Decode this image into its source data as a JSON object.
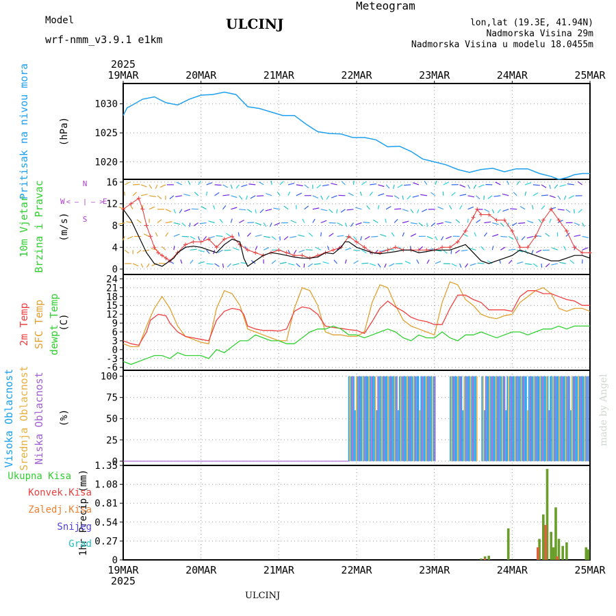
{
  "header": {
    "model_label": "Model",
    "model_name": "wrf-nmm_v3.9.1 e1km",
    "station": "ULCINJ",
    "meteogram": "Meteogram",
    "lonlat": "lon,lat (19.3E, 41.94N)",
    "elevation": "Nadmorska Visina 29m",
    "model_elevation": "Nadmorska Visina u modelu 18.0455m",
    "footer_station": "ULCINJ",
    "watermark": "made by Angel"
  },
  "colors": {
    "pressure": "#1ea0f0",
    "temp2m": "#f04040",
    "sfc": "#e0a030",
    "dew": "#30d030",
    "wind_gust": "#e84040",
    "wind_speed": "#000000",
    "hi_cloud": "#18a0f0",
    "mid_cloud": "#e8b040",
    "low_cloud": "#a060d0",
    "total_precip": "#6a9e2a",
    "conv_precip": "#e06040",
    "purple_text": "#b040d0",
    "orange_text": "#e0b040"
  },
  "chart_data": {
    "type": "line",
    "x_axis": {
      "year": "2025",
      "categories": [
        "19MAR",
        "20MAR",
        "21MAR",
        "22MAR",
        "23MAR",
        "24MAR",
        "25MAR"
      ],
      "range_days": [
        0,
        6
      ]
    },
    "panels": [
      {
        "id": "pressure",
        "labels": [
          "Pritisak na nivou mora"
        ],
        "unit": "(hPa)",
        "yticks": [
          1020,
          1025,
          1030
        ],
        "ylim": [
          1017,
          1033.5
        ],
        "series": [
          {
            "name": "Pritisak na nivou mora",
            "x": [
              0,
              0.05,
              0.12,
              0.25,
              0.4,
              0.55,
              0.7,
              0.85,
              1.0,
              1.15,
              1.3,
              1.45,
              1.6,
              1.75,
              1.9,
              2.05,
              2.2,
              2.35,
              2.5,
              2.65,
              2.8,
              2.95,
              3.1,
              3.25,
              3.4,
              3.55,
              3.7,
              3.85,
              4.0,
              4.15,
              4.3,
              4.45,
              4.6,
              4.75,
              4.9,
              5.05,
              5.2,
              5.35,
              5.5,
              5.6,
              5.7,
              5.8,
              5.9,
              6.0
            ],
            "y": [
              1028,
              1029.3,
              1029.8,
              1030.8,
              1031.2,
              1030.2,
              1029.8,
              1030.8,
              1031.5,
              1031.6,
              1032.0,
              1031.6,
              1029.5,
              1029.2,
              1028.6,
              1028.0,
              1028.0,
              1026.5,
              1025.2,
              1024.9,
              1024.8,
              1024.2,
              1024.2,
              1023.8,
              1022.6,
              1022.7,
              1021.8,
              1020.5,
              1020.0,
              1019.5,
              1018.7,
              1018.2,
              1018.7,
              1018.9,
              1018.3,
              1018.8,
              1018.8,
              1018.0,
              1017.5,
              1017.0,
              1017.3,
              1017.8,
              1018.0,
              1018.0
            ]
          }
        ]
      },
      {
        "id": "wind",
        "labels": [
          "10m Vjetar",
          "Brzina i Pravac"
        ],
        "unit": "(m/s)",
        "compass": {
          "n": "N",
          "w": "W",
          "e": "E",
          "s": "S",
          "arrow_row": "< — | — >"
        },
        "yticks": [
          0,
          4,
          8,
          12,
          16
        ],
        "ylim": [
          -1,
          16.5
        ],
        "series": [
          {
            "name": "wind speed",
            "x": [
              0,
              0.1,
              0.2,
              0.3,
              0.4,
              0.5,
              0.55,
              0.6,
              0.65,
              0.7,
              0.8,
              0.9,
              1.0,
              1.1,
              1.2,
              1.3,
              1.4,
              1.5,
              1.55,
              1.6,
              1.7,
              1.8,
              1.9,
              2.0,
              2.1,
              2.2,
              2.3,
              2.4,
              2.5,
              2.6,
              2.7,
              2.8,
              2.85,
              2.9,
              3.0,
              3.1,
              3.2,
              3.3,
              3.4,
              3.5,
              3.6,
              3.7,
              3.8,
              3.9,
              4.0,
              4.1,
              4.2,
              4.3,
              4.4,
              4.5,
              4.6,
              4.7,
              4.8,
              4.9,
              5.0,
              5.1,
              5.2,
              5.3,
              5.4,
              5.5,
              5.6,
              5.7,
              5.8,
              5.9,
              6.0
            ],
            "y": [
              11,
              9,
              6,
              3,
              1,
              0.5,
              1,
              1.5,
              2,
              3,
              4,
              4.2,
              4.0,
              3.5,
              3.0,
              4.5,
              5.5,
              5.0,
              2,
              0.5,
              1.5,
              2.5,
              3,
              2.8,
              2.5,
              2.2,
              2.0,
              2.0,
              2.2,
              3,
              2.8,
              4.0,
              5,
              5,
              4,
              3.5,
              3,
              2.8,
              3,
              3.2,
              3.5,
              3.5,
              3.0,
              3.2,
              3.5,
              3.5,
              3.5,
              4.0,
              4.5,
              3.0,
              1.5,
              1.0,
              1.5,
              2.0,
              2.5,
              3.5,
              3.0,
              2.5,
              2.0,
              1.5,
              1.5,
              2.0,
              2.5,
              2.5,
              2.0
            ]
          },
          {
            "name": "wind gust",
            "x": [
              0,
              0.1,
              0.2,
              0.25,
              0.3,
              0.35,
              0.4,
              0.45,
              0.5,
              0.55,
              0.6,
              0.7,
              0.8,
              0.9,
              1.0,
              1.1,
              1.2,
              1.3,
              1.4,
              1.5,
              1.6,
              1.7,
              1.8,
              1.9,
              2.0,
              2.1,
              2.2,
              2.3,
              2.4,
              2.5,
              2.6,
              2.7,
              2.8,
              2.9,
              3.0,
              3.1,
              3.2,
              3.3,
              3.4,
              3.5,
              3.6,
              3.7,
              3.8,
              3.9,
              4.0,
              4.1,
              4.2,
              4.3,
              4.4,
              4.5,
              4.55,
              4.6,
              4.7,
              4.8,
              4.9,
              5.0,
              5.1,
              5.2,
              5.3,
              5.4,
              5.5,
              5.6,
              5.7,
              5.8,
              5.9,
              6.0
            ],
            "y": [
              11,
              12,
              13,
              11,
              8,
              6,
              4,
              3,
              2.5,
              2,
              1.5,
              3,
              4.5,
              5,
              5,
              5.5,
              4,
              5.5,
              6,
              4.5,
              3.5,
              3,
              2.5,
              3,
              3.5,
              3,
              2.5,
              2.5,
              2.0,
              2.5,
              3,
              3.5,
              4,
              6,
              5,
              4,
              3,
              3,
              3.5,
              4,
              3.5,
              3.5,
              3.5,
              3.5,
              3.5,
              4,
              4,
              5,
              7,
              9.5,
              11,
              10,
              10,
              9,
              9,
              7,
              4,
              4,
              6,
              9,
              11,
              9,
              7,
              4,
              3,
              3
            ]
          }
        ]
      },
      {
        "id": "temperature",
        "labels": [
          "2m Temp",
          "SFC Temp",
          "dewpt Temp"
        ],
        "unit": "(C)",
        "yticks": [
          -6,
          -3,
          0,
          3,
          6,
          9,
          12,
          15,
          18,
          21,
          24
        ],
        "ylim": [
          -7,
          25.5
        ],
        "series": [
          {
            "name": "2m Temp",
            "x": [
              0,
              0.1,
              0.2,
              0.3,
              0.35,
              0.45,
              0.55,
              0.6,
              0.7,
              0.8,
              0.9,
              1.0,
              1.1,
              1.2,
              1.3,
              1.4,
              1.5,
              1.55,
              1.6,
              1.7,
              1.8,
              1.9,
              2.0,
              2.1,
              2.2,
              2.3,
              2.4,
              2.5,
              2.6,
              2.7,
              2.8,
              2.9,
              3.0,
              3.1,
              3.2,
              3.3,
              3.4,
              3.5,
              3.6,
              3.7,
              3.8,
              3.9,
              4.0,
              4.1,
              4.2,
              4.3,
              4.4,
              4.5,
              4.6,
              4.7,
              4.8,
              4.9,
              5.0,
              5.1,
              5.2,
              5.3,
              5.4,
              5.5,
              5.6,
              5.7,
              5.8,
              5.9,
              6.0
            ],
            "y": [
              3,
              2,
              1.5,
              6,
              10,
              12,
              11.5,
              9,
              6,
              4.5,
              4,
              3.5,
              3,
              10,
              13,
              14,
              13.5,
              12,
              8,
              7,
              6.5,
              6.5,
              6.3,
              7,
              13,
              14.5,
              14,
              12,
              8,
              7.5,
              7.2,
              6.8,
              6.5,
              5.5,
              9.5,
              14,
              16.5,
              14.5,
              13,
              11,
              10,
              9.5,
              8.5,
              8.5,
              14,
              18.5,
              18.5,
              17,
              16,
              13.5,
              13.5,
              13.5,
              13,
              18,
              20,
              20,
              19,
              19,
              18,
              17,
              16.5,
              15,
              15
            ]
          },
          {
            "name": "SFC Temp",
            "x": [
              0,
              0.1,
              0.2,
              0.3,
              0.4,
              0.5,
              0.6,
              0.7,
              0.8,
              0.9,
              1.0,
              1.1,
              1.2,
              1.3,
              1.4,
              1.5,
              1.6,
              1.7,
              1.8,
              1.9,
              2.0,
              2.1,
              2.2,
              2.3,
              2.4,
              2.5,
              2.6,
              2.7,
              2.8,
              2.9,
              3.0,
              3.1,
              3.2,
              3.3,
              3.4,
              3.5,
              3.6,
              3.7,
              3.8,
              3.9,
              4.0,
              4.1,
              4.2,
              4.3,
              4.4,
              4.5,
              4.6,
              4.7,
              4.8,
              4.9,
              5.0,
              5.1,
              5.2,
              5.3,
              5.4,
              5.5,
              5.6,
              5.7,
              5.8,
              5.9,
              6.0
            ],
            "y": [
              2,
              1,
              1,
              8,
              14,
              18,
              14,
              8,
              4.5,
              3.5,
              2.5,
              2,
              14,
              20,
              19,
              15,
              7,
              6,
              5,
              4,
              3,
              3,
              14,
              21,
              20,
              15,
              6,
              5,
              5,
              4.5,
              4.5,
              6,
              16,
              22,
              21,
              15,
              10,
              8,
              7,
              6,
              5,
              16,
              23,
              22,
              17,
              15,
              12,
              11,
              10.5,
              11.5,
              12,
              16,
              18,
              20,
              21,
              19,
              14,
              13,
              14,
              14,
              13
            ]
          },
          {
            "name": "dewpt Temp",
            "x": [
              0,
              0.1,
              0.2,
              0.3,
              0.4,
              0.5,
              0.6,
              0.7,
              0.8,
              0.9,
              1.0,
              1.1,
              1.2,
              1.3,
              1.4,
              1.5,
              1.6,
              1.7,
              1.8,
              1.9,
              2.0,
              2.1,
              2.2,
              2.3,
              2.4,
              2.5,
              2.6,
              2.7,
              2.8,
              2.9,
              3.0,
              3.1,
              3.2,
              3.3,
              3.4,
              3.5,
              3.6,
              3.7,
              3.8,
              3.9,
              4.0,
              4.1,
              4.2,
              4.3,
              4.4,
              4.5,
              4.6,
              4.7,
              4.8,
              4.9,
              5.0,
              5.1,
              5.2,
              5.3,
              5.4,
              5.5,
              5.6,
              5.7,
              5.8,
              5.9,
              6.0
            ],
            "y": [
              -4,
              -5,
              -4,
              -3,
              -2,
              -2,
              -3,
              -1,
              -2,
              -2,
              -2,
              -3,
              0,
              -1,
              1,
              3,
              3,
              5,
              4,
              3,
              3,
              2,
              2,
              4,
              6,
              7,
              7,
              8,
              7,
              5,
              5,
              4,
              5,
              6,
              7,
              6,
              4,
              3,
              5,
              4,
              4,
              6,
              4,
              3,
              5,
              5,
              6,
              5,
              4,
              5,
              6,
              6,
              5,
              6,
              7,
              7,
              8,
              7,
              8,
              8,
              8
            ]
          }
        ]
      },
      {
        "id": "clouds",
        "labels": [
          "Visoka Oblacnost",
          "Srednja Oblacnost",
          "Niska Oblacnost"
        ],
        "unit": "(%)",
        "yticks": [
          0,
          25,
          50,
          75,
          100
        ],
        "ylim": [
          -5,
          107
        ],
        "series": [
          {
            "name": "Visoka Oblacnost",
            "x": [
              0,
              2.9,
              2.95,
              4.0,
              4.2,
              4.55,
              4.6,
              4.95,
              5.0,
              5.05,
              5.9,
              6.0
            ],
            "y": [
              0,
              0,
              100,
              100,
              0,
              0,
              100,
              100,
              0,
              100,
              100,
              100
            ]
          }
        ]
      },
      {
        "id": "precip",
        "labels": [
          "Ukupna Kisa",
          "Konvek.Kisa",
          "Zaledj.Kisa",
          "Snijeg",
          "Grad"
        ],
        "unit": "1hr Precip (mm)",
        "yticks": [
          0,
          0.27,
          0.54,
          0.81,
          1.08,
          1.35
        ],
        "ylim": [
          0,
          1.35
        ],
        "series": [
          {
            "name": "Ukupna Kisa",
            "x": [
              4.6,
              4.65,
              4.7,
              4.95,
              5.35,
              5.4,
              5.45,
              5.5,
              5.53,
              5.56,
              5.6,
              5.65,
              5.7,
              5.95,
              5.98
            ],
            "y": [
              0.02,
              0.05,
              0.06,
              0.45,
              0.3,
              0.65,
              1.3,
              0.4,
              0.18,
              0.75,
              0.3,
              0.2,
              0.25,
              0.18,
              0.15
            ]
          },
          {
            "name": "Konvek.Kisa",
            "x": [
              4.65,
              5.33,
              5.43,
              5.58
            ],
            "y": [
              0.02,
              0.18,
              0.5,
              0.05
            ]
          }
        ]
      }
    ]
  }
}
